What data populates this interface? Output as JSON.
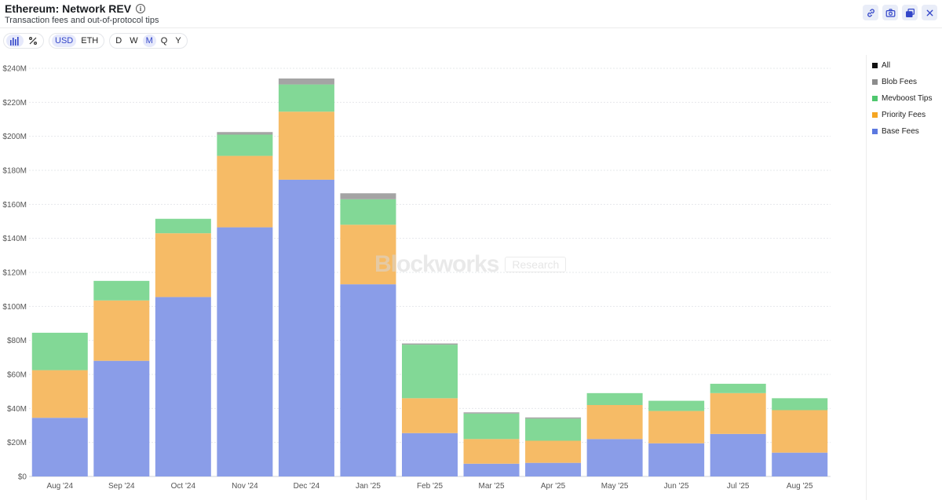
{
  "header": {
    "title": "Ethereum: Network REV",
    "subtitle": "Transaction fees and out-of-protocol tips"
  },
  "actions": [
    {
      "name": "link-icon"
    },
    {
      "name": "camera-icon"
    },
    {
      "name": "copy-icon"
    },
    {
      "name": "close-icon"
    }
  ],
  "toolbar": {
    "chart_icons": [
      "bar-chart-icon",
      "percent-icon"
    ],
    "currency": [
      {
        "label": "USD",
        "active": true
      },
      {
        "label": "ETH",
        "active": false
      }
    ],
    "granularity": [
      {
        "label": "D",
        "active": false
      },
      {
        "label": "W",
        "active": false
      },
      {
        "label": "M",
        "active": true
      },
      {
        "label": "Q",
        "active": false
      },
      {
        "label": "Y",
        "active": false
      }
    ]
  },
  "watermark": {
    "brand": "Blockworks",
    "tag": "Research"
  },
  "legend": [
    {
      "label": "All",
      "color": "#111111"
    },
    {
      "label": "Blob Fees",
      "color": "#8c8c8c"
    },
    {
      "label": "Mevboost Tips",
      "color": "#4fc76e"
    },
    {
      "label": "Priority Fees",
      "color": "#f5a623"
    },
    {
      "label": "Base Fees",
      "color": "#5b78e0"
    }
  ],
  "chart_data": {
    "type": "bar",
    "stacked": true,
    "categories": [
      "Aug '24",
      "Sep '24",
      "Oct '24",
      "Nov '24",
      "Dec '24",
      "Jan '25",
      "Feb '25",
      "Mar '25",
      "Apr '25",
      "May '25",
      "Jun '25",
      "Jul '25",
      "Aug '25"
    ],
    "series": [
      {
        "name": "Base Fees",
        "color": "#8a9de8",
        "values": [
          34.5,
          68,
          105.5,
          146.5,
          174.5,
          113,
          25.5,
          7.5,
          8,
          22,
          19.5,
          25,
          14
        ]
      },
      {
        "name": "Priority Fees",
        "color": "#f6bb66",
        "values": [
          28,
          35.5,
          37.5,
          42,
          40,
          35,
          20.5,
          14.5,
          13,
          20,
          19,
          24,
          25
        ]
      },
      {
        "name": "Mevboost Tips",
        "color": "#82d896",
        "values": [
          22,
          11.5,
          8.5,
          12.5,
          16,
          15,
          31.5,
          15,
          13,
          7,
          6,
          5.5,
          7
        ]
      },
      {
        "name": "Blob Fees",
        "color": "#a4a4a4",
        "values": [
          0,
          0,
          0,
          1.5,
          3.5,
          3.5,
          0.7,
          0.7,
          0.7,
          0,
          0,
          0,
          0
        ]
      }
    ],
    "y_tick_labels": [
      "$0",
      "$20M",
      "$40M",
      "$60M",
      "$80M",
      "$100M",
      "$120M",
      "$140M",
      "$160M",
      "$180M",
      "$200M",
      "$220M",
      "$240M"
    ],
    "ylim": [
      0,
      240
    ],
    "y_unit": "USD millions",
    "grid": true,
    "legend_position": "right"
  }
}
